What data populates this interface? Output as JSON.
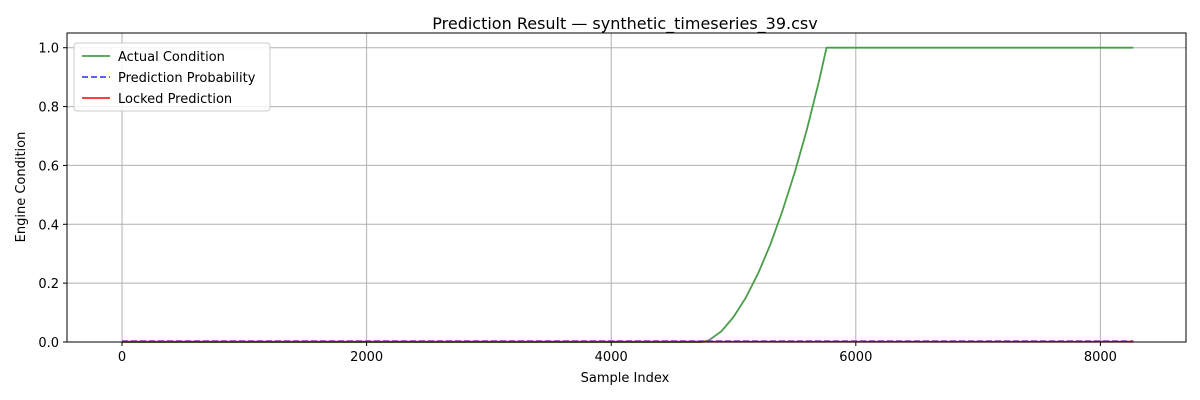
{
  "chart_data": {
    "type": "line",
    "title": "Prediction Result — synthetic_timeseries_39.csv",
    "xlabel": "Sample Index",
    "ylabel": "Engine Condition",
    "xlim": [
      -450,
      8700
    ],
    "ylim": [
      0,
      1.05
    ],
    "xticks": [
      0,
      2000,
      4000,
      6000,
      8000
    ],
    "xtick_labels": [
      "0",
      "2000",
      "4000",
      "6000",
      "8000"
    ],
    "yticks": [
      0.0,
      0.2,
      0.4,
      0.6,
      0.8,
      1.0
    ],
    "ytick_labels": [
      "0.0",
      "0.2",
      "0.4",
      "0.6",
      "0.8",
      "1.0"
    ],
    "grid": true,
    "legend_position": "top-left",
    "series": [
      {
        "name": "Actual Condition",
        "color": "#4a9e4a",
        "style": "solid",
        "x": [
          0,
          4000,
          4740,
          4800,
          4900,
          5000,
          5100,
          5200,
          5300,
          5400,
          5500,
          5600,
          5700,
          5760,
          6000,
          7000,
          8000,
          8270
        ],
        "y": [
          0,
          0,
          0,
          0.006,
          0.036,
          0.085,
          0.15,
          0.232,
          0.33,
          0.445,
          0.576,
          0.722,
          0.888,
          1.0,
          1.0,
          1.0,
          1.0,
          1.0
        ]
      },
      {
        "name": "Prediction Probability",
        "color": "#4a4aff",
        "style": "dashed",
        "x": [
          0,
          8270
        ],
        "y": [
          0.003,
          0.003
        ]
      },
      {
        "name": "Locked Prediction",
        "color": "#ee2a2a",
        "style": "solid",
        "x": [
          0,
          8270
        ],
        "y": [
          0.001,
          0.001
        ]
      }
    ]
  }
}
